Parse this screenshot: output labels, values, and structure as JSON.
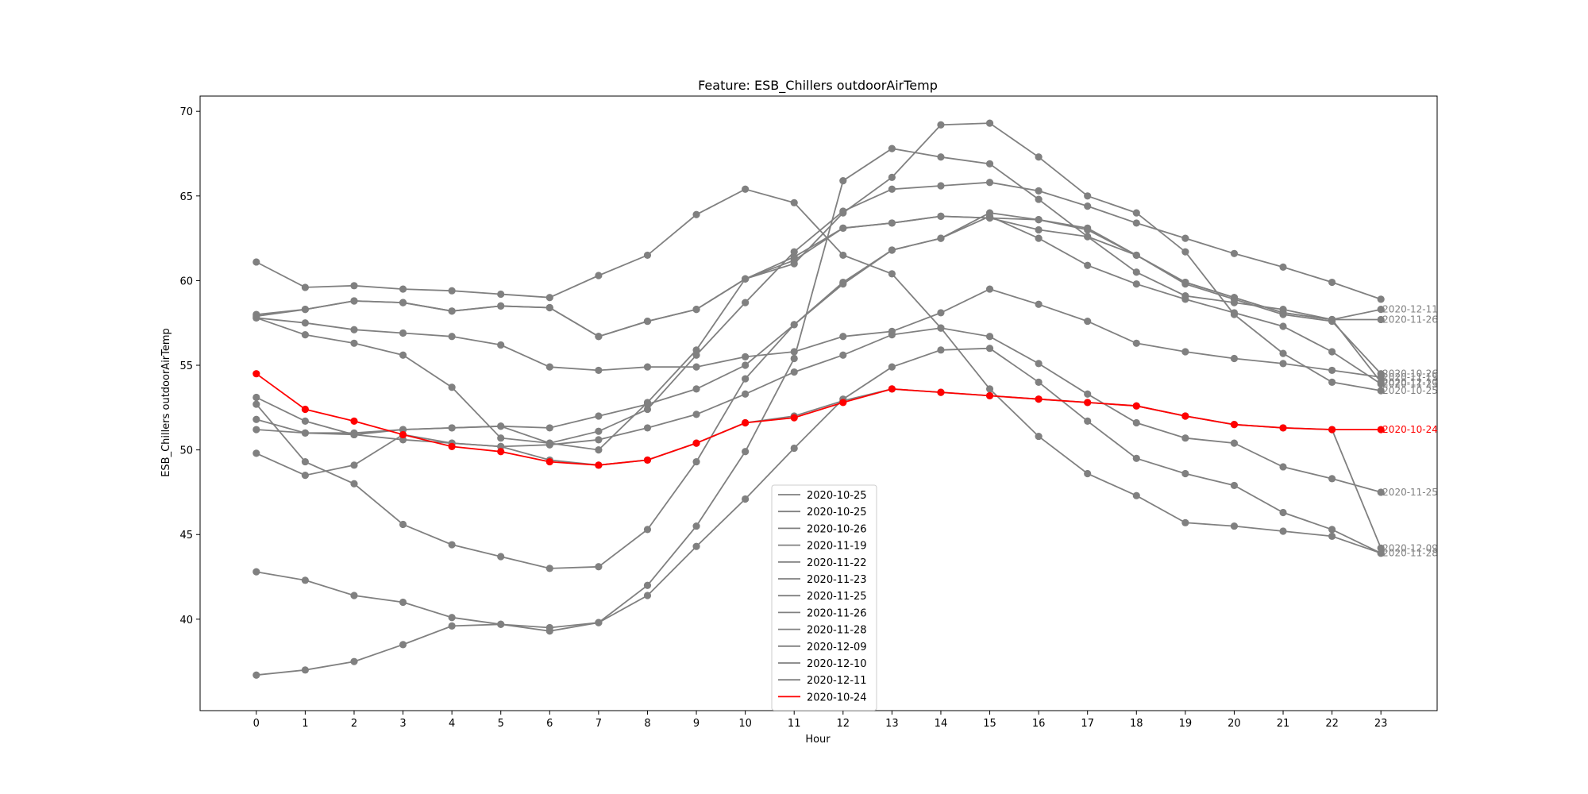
{
  "chart_data": {
    "type": "line",
    "title": "Feature: ESB_Chillers outdoorAirTemp",
    "xlabel": "Hour",
    "ylabel": "ESB_Chillers outdoorAirTemp",
    "x": [
      0,
      1,
      2,
      3,
      4,
      5,
      6,
      7,
      8,
      9,
      10,
      11,
      12,
      13,
      14,
      15,
      16,
      17,
      18,
      19,
      20,
      21,
      22,
      23
    ],
    "xlim": [
      -1.15,
      24.15
    ],
    "ylim": [
      34.6,
      70.9
    ],
    "yticks": [
      40,
      45,
      50,
      55,
      60,
      65,
      70
    ],
    "grid": false,
    "legend_placement": "lower center",
    "colors": {
      "default": "#808080",
      "highlight": "#ff0000"
    },
    "series": [
      {
        "name": "2020-10-25",
        "end_label": "2020-10-25",
        "color": "#808080",
        "values": [
          57.9,
          58.3,
          58.8,
          58.7,
          58.2,
          58.5,
          58.4,
          56.7,
          57.6,
          58.3,
          60.1,
          61.0,
          64.0,
          66.1,
          69.2,
          69.3,
          67.3,
          65.0,
          64.0,
          61.7,
          58.0,
          55.7,
          54.0,
          53.5
        ]
      },
      {
        "name": "2020-10-25",
        "end_label": "",
        "color": "#808080",
        "values": [
          57.8,
          56.8,
          56.3,
          55.6,
          53.7,
          50.7,
          50.4,
          51.1,
          52.4,
          55.6,
          58.7,
          61.7,
          64.1,
          65.4,
          65.6,
          65.8,
          65.3,
          64.4,
          63.4,
          62.5,
          61.6,
          60.8,
          59.9,
          58.9
        ]
      },
      {
        "name": "2020-10-26",
        "end_label": "2020-10-26",
        "color": "#808080",
        "values": [
          53.1,
          51.7,
          50.9,
          51.2,
          51.3,
          51.4,
          51.3,
          52.0,
          52.7,
          53.6,
          55.0,
          57.4,
          59.9,
          61.8,
          62.5,
          64.0,
          63.6,
          63.0,
          61.5,
          59.8,
          58.9,
          58.0,
          57.6,
          54.5
        ]
      },
      {
        "name": "2020-11-19",
        "end_label": "2020-11-19",
        "color": "#808080",
        "values": [
          57.8,
          57.5,
          57.1,
          56.9,
          56.7,
          56.2,
          54.9,
          54.7,
          54.9,
          54.9,
          55.5,
          55.8,
          56.7,
          57.0,
          58.1,
          59.5,
          58.6,
          57.6,
          56.3,
          55.8,
          55.4,
          55.1,
          54.7,
          54.3
        ]
      },
      {
        "name": "2020-11-22",
        "end_label": "",
        "color": "#808080",
        "values": [
          61.1,
          59.6,
          59.7,
          59.5,
          59.4,
          59.2,
          59.0,
          60.3,
          61.5,
          63.9,
          65.4,
          64.6,
          61.5,
          60.4,
          57.2,
          53.6,
          50.8,
          48.6,
          47.3,
          45.7,
          45.5,
          45.2,
          44.9,
          43.9
        ]
      },
      {
        "name": "2020-11-23",
        "end_label": "2020-11-23",
        "color": "#808080",
        "values": [
          52.7,
          49.3,
          48.0,
          45.6,
          44.4,
          43.7,
          43.0,
          43.1,
          45.3,
          49.3,
          54.2,
          57.4,
          59.8,
          61.8,
          62.5,
          63.8,
          62.5,
          60.9,
          59.8,
          58.9,
          58.1,
          57.3,
          55.8,
          53.9
        ]
      },
      {
        "name": "2020-11-25",
        "end_label": "2020-11-25",
        "color": "#808080",
        "values": [
          49.8,
          48.5,
          49.1,
          50.9,
          50.4,
          50.2,
          50.3,
          50.6,
          51.3,
          52.1,
          53.3,
          54.6,
          55.6,
          56.8,
          57.2,
          56.7,
          55.1,
          53.3,
          51.6,
          50.7,
          50.4,
          49.0,
          48.3,
          47.5
        ]
      },
      {
        "name": "2020-11-26",
        "end_label": "2020-11-26",
        "color": "#808080",
        "values": [
          51.8,
          51.0,
          51.0,
          51.2,
          51.3,
          51.4,
          50.4,
          50.0,
          52.8,
          55.9,
          60.1,
          61.4,
          63.1,
          63.4,
          63.8,
          63.7,
          63.0,
          62.6,
          60.5,
          59.1,
          58.7,
          58.3,
          57.7,
          57.7
        ]
      },
      {
        "name": "2020-11-28",
        "end_label": "2020-11-28",
        "color": "#808080",
        "values": [
          36.7,
          37.0,
          37.5,
          38.5,
          39.6,
          39.7,
          39.5,
          39.8,
          41.4,
          44.3,
          47.1,
          50.1,
          53.0,
          54.9,
          55.9,
          56.0,
          54.0,
          51.7,
          49.5,
          48.6,
          47.9,
          46.3,
          45.3,
          43.9
        ]
      },
      {
        "name": "2020-12-09",
        "end_label": "2020-12-09",
        "color": "#808080",
        "values": [
          51.2,
          51.0,
          50.9,
          50.6,
          50.4,
          50.2,
          49.4,
          49.1,
          49.4,
          50.4,
          51.6,
          52.0,
          52.9,
          53.6,
          53.4,
          53.2,
          53.0,
          52.8,
          52.6,
          52.0,
          51.5,
          51.3,
          51.2,
          44.2
        ]
      },
      {
        "name": "2020-12-10",
        "end_label": "2020-12-10",
        "color": "#808080",
        "values": [
          42.8,
          42.3,
          41.4,
          41.0,
          40.1,
          39.7,
          39.3,
          39.8,
          42.0,
          45.5,
          49.9,
          55.4,
          65.9,
          67.8,
          67.3,
          66.9,
          64.8,
          62.6,
          61.5,
          59.9,
          59.0,
          58.1,
          57.7,
          54.0
        ]
      },
      {
        "name": "2020-12-11",
        "end_label": "2020-12-11",
        "color": "#808080",
        "values": [
          58.0,
          58.3,
          58.8,
          58.7,
          58.2,
          58.5,
          58.4,
          56.7,
          57.6,
          58.3,
          60.1,
          61.2,
          63.1,
          63.4,
          63.8,
          63.7,
          63.6,
          63.1,
          61.5,
          59.9,
          59.0,
          58.1,
          57.7,
          58.3
        ]
      },
      {
        "name": "2020-10-24",
        "end_label": "2020-10-24",
        "color": "#ff0000",
        "values": [
          54.5,
          52.4,
          51.7,
          50.9,
          50.2,
          49.9,
          49.3,
          49.1,
          49.4,
          50.4,
          51.6,
          51.9,
          52.8,
          53.6,
          53.4,
          53.2,
          53.0,
          52.8,
          52.6,
          52.0,
          51.5,
          51.3,
          51.2,
          51.2
        ]
      }
    ]
  }
}
